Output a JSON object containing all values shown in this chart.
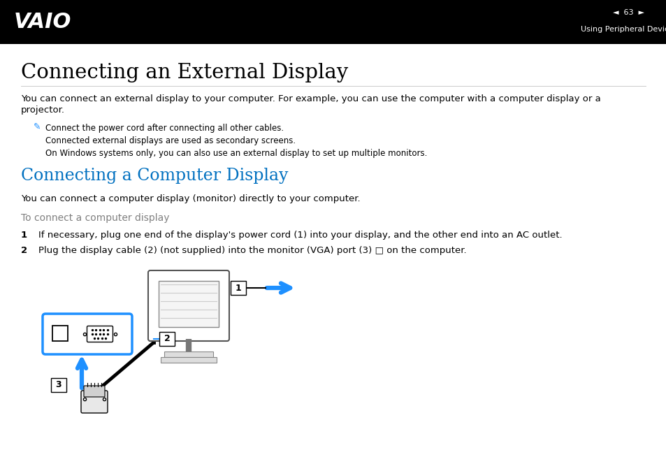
{
  "bg_color": "#ffffff",
  "header_bg": "#000000",
  "page_num": "63",
  "header_right_text": "Using Peripheral Devices",
  "title1": "Connecting an External Display",
  "body1_line1": "You can connect an external display to your computer. For example, you can use the computer with a computer display or a",
  "body1_line2": "projector.",
  "note_line1": "Connect the power cord after connecting all other cables.",
  "note_line2": "Connected external displays are used as secondary screens.",
  "note_line3": "On Windows systems only, you can also use an external display to set up multiple monitors.",
  "title2": "Connecting a Computer Display",
  "title2_color": "#0070C0",
  "body2": "You can connect a computer display (monitor) directly to your computer.",
  "subtitle": "To connect a computer display",
  "subtitle_color": "#808080",
  "step1_num": "1",
  "step1": "If necessary, plug one end of the display's power cord (1) into your display, and the other end into an AC outlet.",
  "step2_num": "2",
  "step2": "Plug the display cable (2) (not supplied) into the monitor (VGA) port (3) □ on the computer.",
  "arrow_color": "#1E90FF",
  "diagram_line_color": "#333333"
}
